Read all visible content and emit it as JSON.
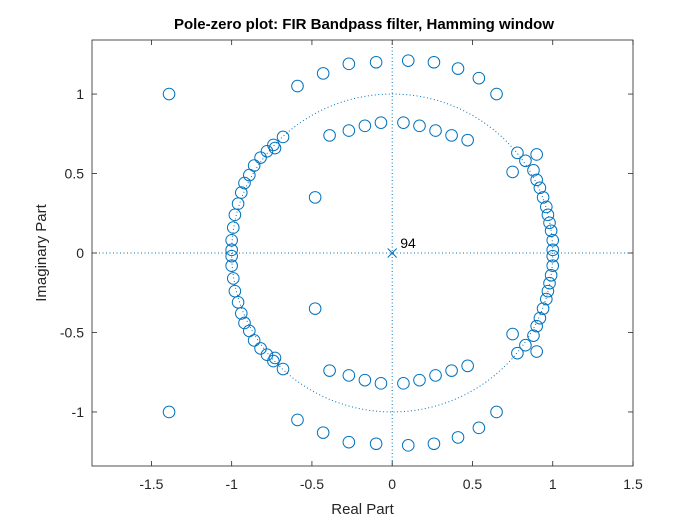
{
  "chart_data": {
    "type": "scatter",
    "title": "Pole-zero plot: FIR Bandpass filter, Hamming window",
    "xlabel": "Real Part",
    "ylabel": "Imaginary Part",
    "xlim": [
      -1.87,
      1.5
    ],
    "ylim": [
      -1.34,
      1.34
    ],
    "xticks": [
      -1.5,
      -1,
      -0.5,
      0,
      0.5,
      1,
      1.5
    ],
    "yticks": [
      -1,
      -0.5,
      0,
      0.5,
      1
    ],
    "xtick_labels": [
      "-1.5",
      "-1",
      "-0.5",
      "0",
      "0.5",
      "1",
      "1.5"
    ],
    "ytick_labels": [
      "-1",
      "-0.5",
      "0",
      "0.5",
      "1"
    ],
    "grid": false,
    "unit_circle": true,
    "colors": {
      "markers": "#0072BD",
      "axes": "#262626"
    },
    "poles": [
      [
        0,
        0
      ]
    ],
    "pole_annotation": "94",
    "zeros_upper": [
      [
        -1.39,
        1.0
      ],
      [
        -0.59,
        1.05
      ],
      [
        -0.43,
        1.13
      ],
      [
        -0.27,
        1.19
      ],
      [
        -0.1,
        1.2
      ],
      [
        0.1,
        1.21
      ],
      [
        0.26,
        1.2
      ],
      [
        0.41,
        1.16
      ],
      [
        0.54,
        1.1
      ],
      [
        0.65,
        1.0
      ],
      [
        -0.39,
        0.74
      ],
      [
        -0.27,
        0.77
      ],
      [
        -0.17,
        0.8
      ],
      [
        -0.07,
        0.82
      ],
      [
        0.07,
        0.82
      ],
      [
        0.17,
        0.8
      ],
      [
        0.27,
        0.77
      ],
      [
        0.37,
        0.74
      ],
      [
        0.47,
        0.71
      ],
      [
        -0.48,
        0.35
      ],
      [
        -1.0,
        0.02
      ],
      [
        -1.0,
        0.08
      ],
      [
        -0.99,
        0.16
      ],
      [
        -0.98,
        0.24
      ],
      [
        -0.96,
        0.31
      ],
      [
        -0.94,
        0.38
      ],
      [
        -0.92,
        0.44
      ],
      [
        -0.89,
        0.49
      ],
      [
        -0.86,
        0.55
      ],
      [
        -0.82,
        0.6
      ],
      [
        -0.78,
        0.64
      ],
      [
        -0.74,
        0.68
      ],
      [
        -0.73,
        0.66
      ],
      [
        -0.68,
        0.73
      ],
      [
        1.0,
        0.02
      ],
      [
        1.0,
        0.08
      ],
      [
        0.99,
        0.14
      ],
      [
        0.98,
        0.19
      ],
      [
        0.97,
        0.24
      ],
      [
        0.96,
        0.29
      ],
      [
        0.94,
        0.35
      ],
      [
        0.92,
        0.41
      ],
      [
        0.9,
        0.46
      ],
      [
        0.88,
        0.52
      ],
      [
        0.83,
        0.58
      ],
      [
        0.78,
        0.63
      ],
      [
        0.9,
        0.62
      ],
      [
        0.75,
        0.51
      ]
    ]
  }
}
